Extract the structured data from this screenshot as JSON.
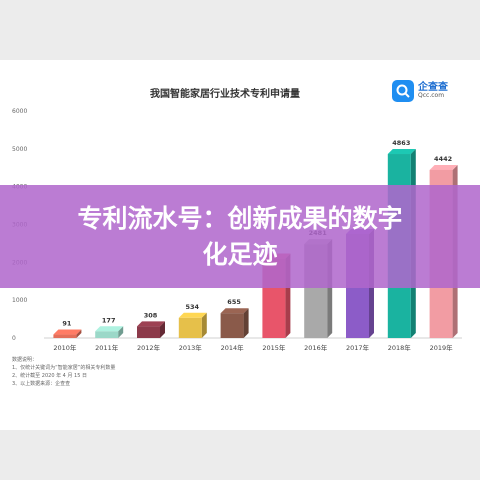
{
  "header": {
    "title": "我国智能家居行业技术专利申请量",
    "logo_name": "企查查",
    "logo_domain": "Qcc.com"
  },
  "chart_data": {
    "type": "bar",
    "title": "我国智能家居行业技术专利申请量",
    "categories": [
      "2010年",
      "2011年",
      "2012年",
      "2013年",
      "2014年",
      "2015年",
      "2016年",
      "2017年",
      "2018年",
      "2019年"
    ],
    "values": [
      91,
      177,
      308,
      534,
      655,
      2100,
      2481,
      2750,
      4863,
      4442
    ],
    "data_labels": [
      "91",
      "177",
      "308",
      "534",
      "655",
      "",
      "2481",
      "",
      "4863",
      "4442"
    ],
    "yticks": [
      "0",
      "1000",
      "2000",
      "3000",
      "4000",
      "5000",
      "6000"
    ],
    "ylim": [
      0,
      6000
    ],
    "grid": false,
    "colors": [
      "#e46f5a",
      "#9bd8c8",
      "#8c3a4a",
      "#e6c04a",
      "#8a5a4a",
      "#e8556a",
      "#a9a9a9",
      "#8c5cc8",
      "#1ab3a0",
      "#f29ca3"
    ]
  },
  "notes": {
    "heading": "数据说明：",
    "lines": [
      "1、仅统计关键词为“智能家居”的相关专利数量",
      "2、统计截至 2020 年 4 月 15 日",
      "3、以上数据来源：企查查"
    ]
  },
  "banner": {
    "line1": "专利流水号：创新成果的数字",
    "line2": "化足迹"
  }
}
